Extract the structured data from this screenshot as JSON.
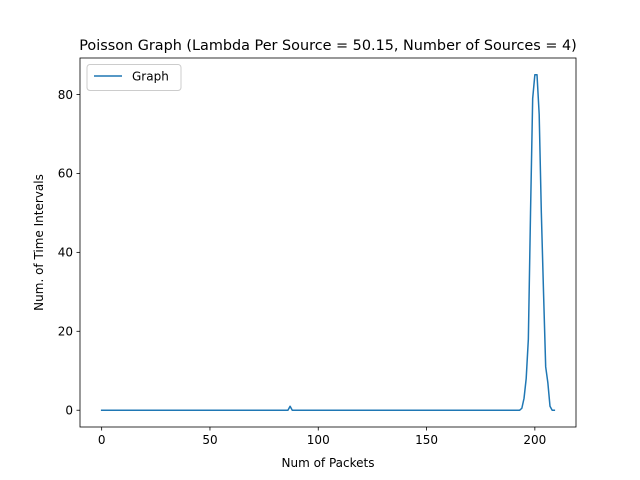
{
  "chart_data": {
    "type": "line",
    "title": "Poisson Graph (Lambda Per Source = 50.15, Number of Sources = 4)",
    "xlabel": "Num of Packets",
    "ylabel": "Num. of Time Intervals",
    "xlim": [
      -10,
      219
    ],
    "ylim": [
      -4.25,
      89.25
    ],
    "xticks": [
      0,
      50,
      100,
      150,
      200
    ],
    "yticks": [
      0,
      20,
      40,
      60,
      80
    ],
    "grid": false,
    "legend": {
      "location": "upper left",
      "entries": [
        "Graph"
      ]
    },
    "series": [
      {
        "name": "Graph",
        "color": "#1f77b4",
        "x": [
          0,
          86,
          87,
          88,
          193,
          194,
          195,
          196,
          197,
          198,
          199,
          200,
          201,
          202,
          203,
          204,
          205,
          206,
          207,
          208,
          209
        ],
        "y": [
          0,
          0,
          1,
          0,
          0,
          0.5,
          3,
          8,
          18,
          50,
          79,
          85,
          85,
          75,
          50,
          30,
          11,
          7,
          1,
          0,
          0
        ]
      }
    ]
  }
}
